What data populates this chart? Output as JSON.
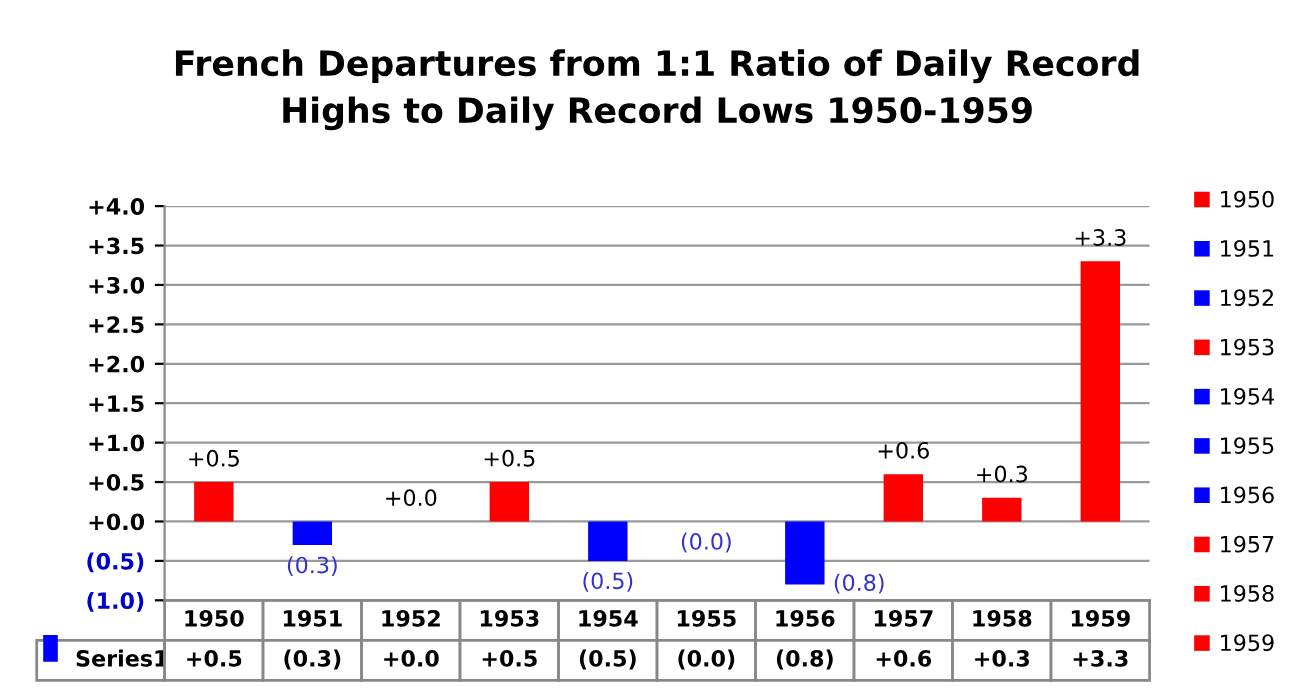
{
  "chart_data": {
    "type": "bar",
    "title": "French Departures from 1:1 Ratio of Daily Record\nHighs to Daily Record Lows 1950-1959",
    "categories": [
      "1950",
      "1951",
      "1952",
      "1953",
      "1954",
      "1955",
      "1956",
      "1957",
      "1958",
      "1959"
    ],
    "series": [
      {
        "name": "Series1",
        "color": "#0000ff",
        "values": [
          0.5,
          -0.3,
          0.0,
          0.5,
          -0.5,
          0.0,
          -0.8,
          0.6,
          0.3,
          3.3
        ],
        "colors": [
          "#ff0000",
          "#0000ff",
          "#0000ff",
          "#ff0000",
          "#0000ff",
          "#0000ff",
          "#0000ff",
          "#ff0000",
          "#ff0000",
          "#ff0000"
        ],
        "value_labels": [
          "+0.5",
          "(0.3)",
          "+0.0",
          "+0.5",
          "(0.5)",
          "(0.0)",
          "(0.8)",
          "+0.6",
          "+0.3",
          "+3.3"
        ]
      }
    ],
    "ylim": [
      -1.0,
      4.0
    ],
    "yticks": [
      {
        "value": -1.0,
        "label": "(1.0)"
      },
      {
        "value": -0.5,
        "label": "(0.5)"
      },
      {
        "value": 0.0,
        "label": "+0.0"
      },
      {
        "value": 0.5,
        "label": "+0.5"
      },
      {
        "value": 1.0,
        "label": "+1.0"
      },
      {
        "value": 1.5,
        "label": "+1.5"
      },
      {
        "value": 2.0,
        "label": "+2.0"
      },
      {
        "value": 2.5,
        "label": "+2.5"
      },
      {
        "value": 3.0,
        "label": "+3.0"
      },
      {
        "value": 3.5,
        "label": "+3.5"
      },
      {
        "value": 4.0,
        "label": "+4.0"
      }
    ],
    "grid": "y",
    "legend": "bottom left"
  }
}
